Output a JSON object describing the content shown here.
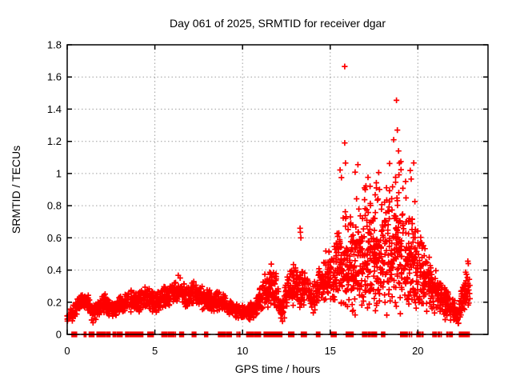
{
  "window": {
    "background_color": "#ffffff"
  },
  "chart_data": {
    "type": "scatter",
    "title": "Day 061 of 2025, SRMTID for receiver dgar",
    "xlabel": "GPS time / hours",
    "ylabel": "SRMTID / TECUs",
    "xlim": [
      0,
      24
    ],
    "ylim": [
      0,
      1.8
    ],
    "xticks": [
      0,
      5,
      10,
      15,
      20
    ],
    "xtick_labels": [
      "0",
      "5",
      "10",
      "15",
      "20"
    ],
    "yticks": [
      0,
      0.2,
      0.4,
      0.6,
      0.8,
      1.0,
      1.2,
      1.4,
      1.6,
      1.8
    ],
    "ytick_labels": [
      "0",
      "0.2",
      "0.4",
      "0.6",
      "0.8",
      "1",
      "1.2",
      "1.4",
      "1.6",
      "1.8"
    ],
    "grid": "dotted",
    "legend": "none",
    "marker": "plus",
    "marker_color": "#ff0000",
    "grid_color": "#9e9e9e",
    "border_color": "#000000",
    "seed": 61,
    "density_per_hour": 100,
    "band": [
      [
        0.0,
        0.09,
        0.045,
        0.8
      ],
      [
        0.4,
        0.14,
        0.05,
        1
      ],
      [
        0.8,
        0.21,
        0.055,
        1
      ],
      [
        1.2,
        0.2,
        0.06,
        1
      ],
      [
        1.45,
        0.12,
        0.05,
        1
      ],
      [
        1.8,
        0.17,
        0.05,
        1
      ],
      [
        2.2,
        0.19,
        0.055,
        1
      ],
      [
        2.6,
        0.145,
        0.05,
        1
      ],
      [
        3.0,
        0.19,
        0.055,
        1
      ],
      [
        3.5,
        0.205,
        0.06,
        1
      ],
      [
        4.0,
        0.2,
        0.065,
        1
      ],
      [
        4.5,
        0.235,
        0.07,
        1
      ],
      [
        5.0,
        0.195,
        0.06,
        1
      ],
      [
        5.5,
        0.23,
        0.07,
        1
      ],
      [
        6.0,
        0.25,
        0.08,
        1
      ],
      [
        6.4,
        0.285,
        0.085,
        1
      ],
      [
        6.8,
        0.225,
        0.07,
        1
      ],
      [
        7.3,
        0.26,
        0.075,
        1
      ],
      [
        7.8,
        0.225,
        0.07,
        1
      ],
      [
        8.3,
        0.2,
        0.06,
        1
      ],
      [
        8.8,
        0.21,
        0.06,
        1
      ],
      [
        9.3,
        0.17,
        0.05,
        1
      ],
      [
        9.8,
        0.14,
        0.045,
        1.1
      ],
      [
        10.3,
        0.135,
        0.045,
        1.1
      ],
      [
        10.8,
        0.17,
        0.06,
        1.1
      ],
      [
        11.2,
        0.25,
        0.1,
        1.1
      ],
      [
        11.6,
        0.31,
        0.13,
        1.1
      ],
      [
        11.9,
        0.27,
        0.12,
        1
      ],
      [
        12.2,
        0.13,
        0.07,
        1
      ],
      [
        12.6,
        0.27,
        0.12,
        1
      ],
      [
        13.0,
        0.33,
        0.13,
        1
      ],
      [
        13.4,
        0.29,
        0.12,
        1
      ],
      [
        13.7,
        0.29,
        0.1,
        1
      ],
      [
        14.0,
        0.21,
        0.09,
        1
      ],
      [
        14.4,
        0.3,
        0.12,
        1
      ],
      [
        14.8,
        0.38,
        0.14,
        1
      ],
      [
        15.2,
        0.36,
        0.2,
        1.2
      ],
      [
        15.6,
        0.46,
        0.3,
        1.3
      ],
      [
        16.0,
        0.5,
        0.34,
        1.3
      ],
      [
        16.4,
        0.42,
        0.28,
        1.3
      ],
      [
        16.8,
        0.46,
        0.31,
        1.3
      ],
      [
        17.2,
        0.5,
        0.34,
        1.3
      ],
      [
        17.6,
        0.46,
        0.32,
        1.3
      ],
      [
        18.0,
        0.5,
        0.35,
        1.3
      ],
      [
        18.4,
        0.55,
        0.38,
        1.3
      ],
      [
        18.8,
        0.56,
        0.4,
        1.3
      ],
      [
        19.2,
        0.5,
        0.35,
        1.3
      ],
      [
        19.6,
        0.46,
        0.3,
        1.3
      ],
      [
        20.0,
        0.4,
        0.25,
        1.2
      ],
      [
        20.4,
        0.34,
        0.2,
        1.1
      ],
      [
        20.8,
        0.3,
        0.15,
        1
      ],
      [
        21.2,
        0.25,
        0.12,
        1
      ],
      [
        21.6,
        0.2,
        0.1,
        1
      ],
      [
        22.0,
        0.15,
        0.08,
        1
      ],
      [
        22.3,
        0.105,
        0.06,
        1
      ],
      [
        22.6,
        0.25,
        0.12,
        1
      ],
      [
        23.0,
        0.32,
        0.14,
        1
      ]
    ],
    "extra_scatter": [
      {
        "h0": 15.3,
        "h1": 19.9,
        "y0": 0.82,
        "y1": 1.08,
        "n": 28
      }
    ],
    "outliers": [
      [
        15.83,
        1.665
      ],
      [
        15.83,
        1.19
      ],
      [
        16.15,
        0.73
      ],
      [
        17.0,
        0.9
      ],
      [
        18.62,
        1.21
      ],
      [
        18.78,
        1.455
      ],
      [
        18.83,
        1.27
      ],
      [
        18.9,
        1.14
      ],
      [
        18.95,
        1.065
      ],
      [
        19.3,
        0.95
      ],
      [
        13.28,
        0.66
      ],
      [
        13.3,
        0.635
      ],
      [
        13.33,
        0.6
      ],
      [
        22.85,
        0.455
      ]
    ],
    "baseline_value": 0,
    "baseline_clusters": [
      [
        0.25,
        0.55,
        6
      ],
      [
        0.95,
        1.1,
        3
      ],
      [
        1.25,
        1.55,
        8
      ],
      [
        1.7,
        2.45,
        16
      ],
      [
        2.6,
        3.15,
        10
      ],
      [
        3.3,
        4.35,
        22
      ],
      [
        4.6,
        4.95,
        8
      ],
      [
        5.35,
        6.2,
        14
      ],
      [
        6.4,
        6.65,
        6
      ],
      [
        7.1,
        7.35,
        5
      ],
      [
        7.8,
        8.05,
        5
      ],
      [
        8.6,
        9.4,
        14
      ],
      [
        9.65,
        9.9,
        5
      ],
      [
        10.2,
        11.05,
        16
      ],
      [
        11.2,
        12.25,
        24
      ],
      [
        12.6,
        12.95,
        7
      ],
      [
        13.35,
        13.65,
        6
      ],
      [
        14.2,
        14.45,
        5
      ],
      [
        15.05,
        15.35,
        6
      ],
      [
        15.9,
        16.35,
        9
      ],
      [
        16.8,
        17.65,
        16
      ],
      [
        17.9,
        18.15,
        5
      ],
      [
        19.0,
        19.65,
        10
      ],
      [
        19.9,
        20.3,
        7
      ],
      [
        20.85,
        21.35,
        8
      ],
      [
        21.65,
        22.0,
        6
      ],
      [
        22.35,
        22.95,
        10
      ]
    ]
  }
}
